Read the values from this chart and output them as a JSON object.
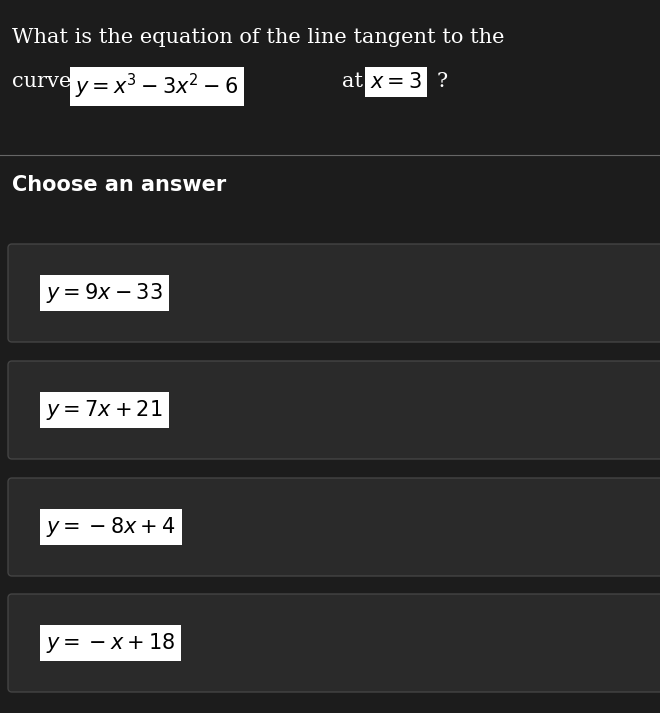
{
  "background_color": "#1c1c1c",
  "question_line1": "What is the equation of the line tangent to the",
  "section_label": "Choose an answer",
  "answer_latex": [
    "$y = 9x - 33$",
    "$y = 7x + 21$",
    "$y = -8x + 4$",
    "$y = -x + 18$"
  ],
  "card_bg": "#2a2a2a",
  "card_border": "#444444",
  "text_color": "#ffffff",
  "highlight_bg": "#ffffff",
  "highlight_text": "#000000",
  "divider_color": "#666666",
  "title_fontsize": 15,
  "section_fontsize": 15,
  "answer_fontsize": 15,
  "fig_width": 6.6,
  "fig_height": 7.13,
  "dpi": 100
}
